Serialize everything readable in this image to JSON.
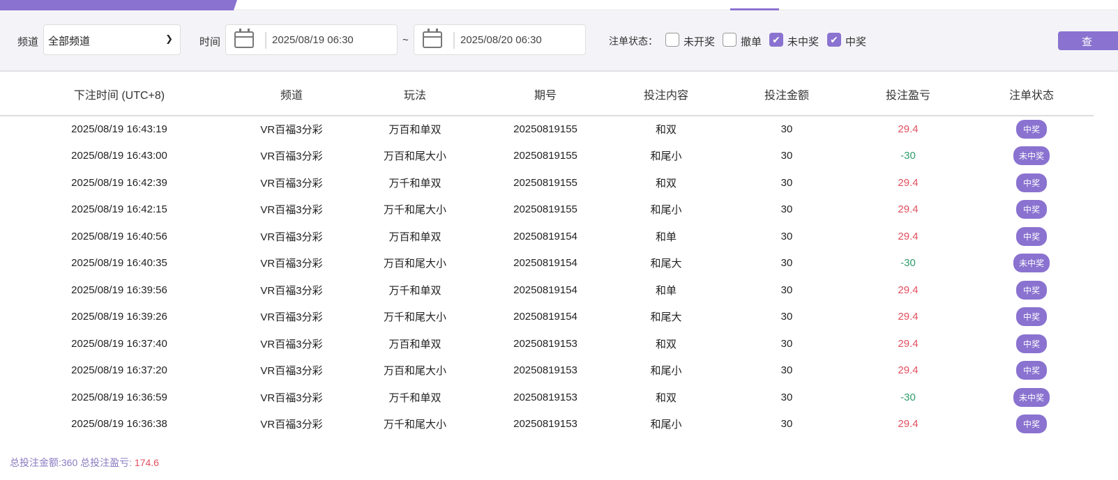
{
  "filter": {
    "channel_label": "频道",
    "channel_value": "全部频道",
    "time_label": "时间",
    "start": "2025/08/19 06:30",
    "tilde": "~",
    "end": "2025/08/20 06:30",
    "status_label": "注单状态：",
    "statuses": [
      {
        "label": "未开奖",
        "checked": false
      },
      {
        "label": "撤单",
        "checked": false
      },
      {
        "label": "未中奖",
        "checked": true
      },
      {
        "label": "中奖",
        "checked": true
      }
    ],
    "query_label": "查"
  },
  "accent": "#8a72d0",
  "table": {
    "headers": [
      "下注时间 (UTC+8)",
      "频道",
      "玩法",
      "期号",
      "投注内容",
      "投注金额",
      "投注盈亏",
      "注单状态"
    ],
    "rows": [
      [
        "2025/08/19 16:43:19",
        "VR百福3分彩",
        "万百和单双",
        "20250819155",
        "和双",
        "30",
        "29.4",
        "中奖"
      ],
      [
        "2025/08/19 16:43:00",
        "VR百福3分彩",
        "万百和尾大小",
        "20250819155",
        "和尾小",
        "30",
        "-30",
        "未中奖"
      ],
      [
        "2025/08/19 16:42:39",
        "VR百福3分彩",
        "万千和单双",
        "20250819155",
        "和双",
        "30",
        "29.4",
        "中奖"
      ],
      [
        "2025/08/19 16:42:15",
        "VR百福3分彩",
        "万千和尾大小",
        "20250819155",
        "和尾小",
        "30",
        "29.4",
        "中奖"
      ],
      [
        "2025/08/19 16:40:56",
        "VR百福3分彩",
        "万百和单双",
        "20250819154",
        "和单",
        "30",
        "29.4",
        "中奖"
      ],
      [
        "2025/08/19 16:40:35",
        "VR百福3分彩",
        "万百和尾大小",
        "20250819154",
        "和尾大",
        "30",
        "-30",
        "未中奖"
      ],
      [
        "2025/08/19 16:39:56",
        "VR百福3分彩",
        "万千和单双",
        "20250819154",
        "和单",
        "30",
        "29.4",
        "中奖"
      ],
      [
        "2025/08/19 16:39:26",
        "VR百福3分彩",
        "万千和尾大小",
        "20250819154",
        "和尾大",
        "30",
        "29.4",
        "中奖"
      ],
      [
        "2025/08/19 16:37:40",
        "VR百福3分彩",
        "万百和单双",
        "20250819153",
        "和双",
        "30",
        "29.4",
        "中奖"
      ],
      [
        "2025/08/19 16:37:20",
        "VR百福3分彩",
        "万百和尾大小",
        "20250819153",
        "和尾小",
        "30",
        "29.4",
        "中奖"
      ],
      [
        "2025/08/19 16:36:59",
        "VR百福3分彩",
        "万千和单双",
        "20250819153",
        "和双",
        "30",
        "-30",
        "未中奖"
      ],
      [
        "2025/08/19 16:36:38",
        "VR百福3分彩",
        "万千和尾大小",
        "20250819153",
        "和尾小",
        "30",
        "29.4",
        "中奖"
      ]
    ]
  },
  "footer": {
    "total_bet_label": "总投注金额:",
    "total_bet": "360",
    "total_pl_label": "总投注盈亏:",
    "total_pl": "174.6"
  }
}
